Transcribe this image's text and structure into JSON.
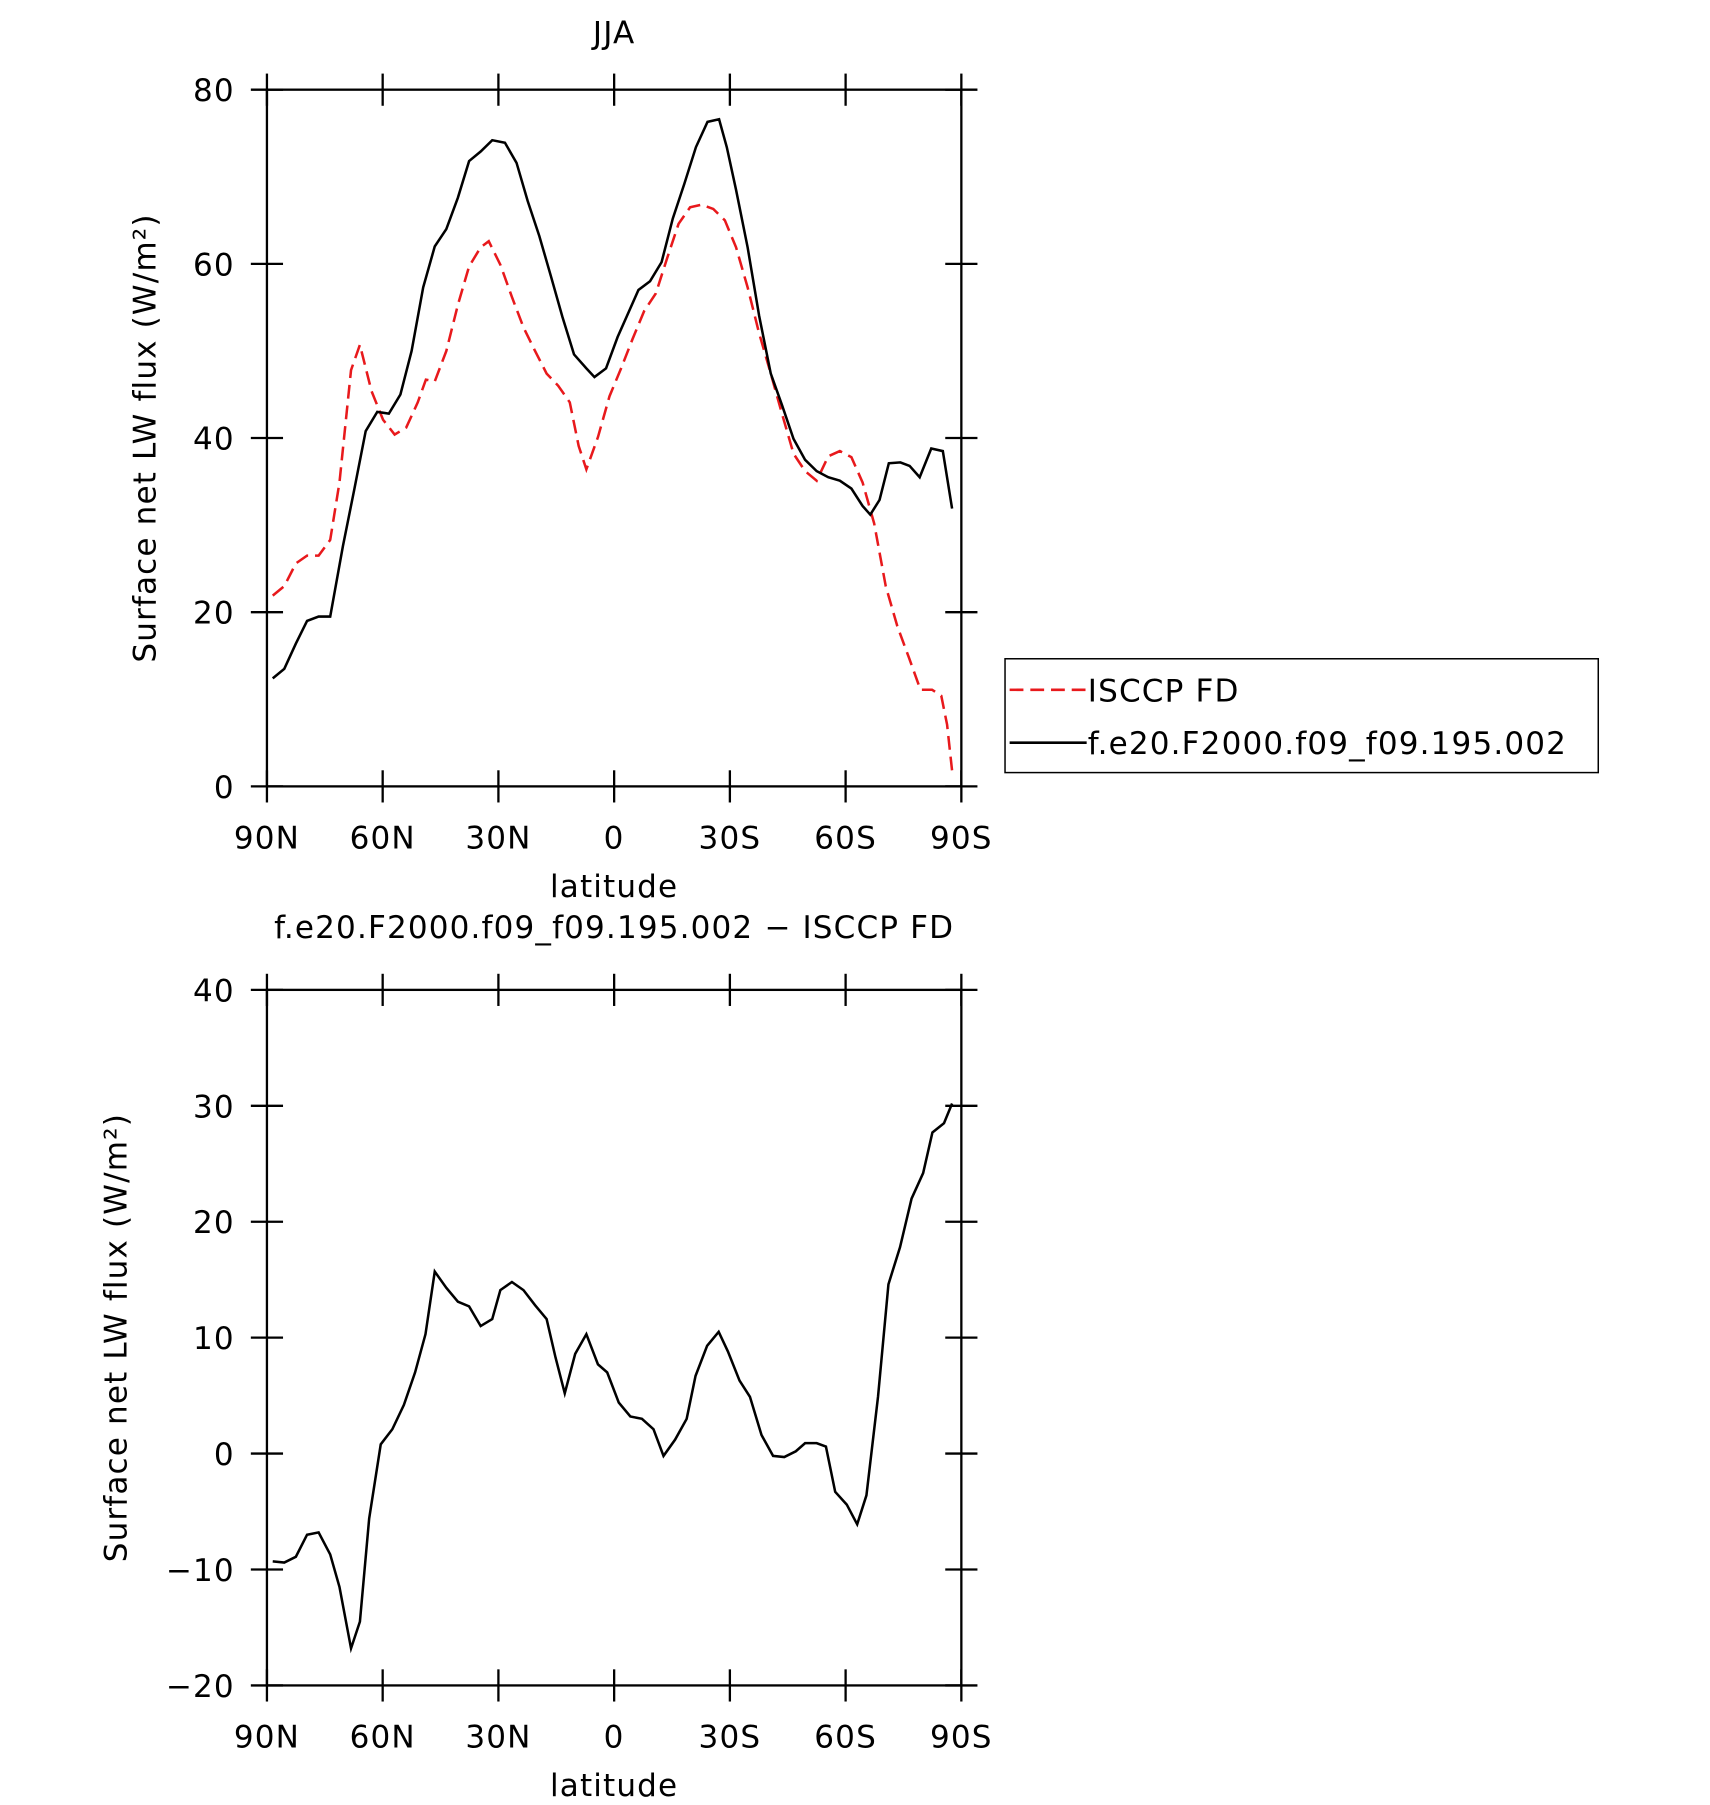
{
  "chart_data": [
    {
      "type": "line",
      "title": "JJA",
      "xlabel": "latitude",
      "ylabel": "Surface net LW flux (W/m²)",
      "xlim": [
        90,
        -90
      ],
      "xticks": [
        {
          "value": 90,
          "label": "90N"
        },
        {
          "value": 60,
          "label": "60N"
        },
        {
          "value": 30,
          "label": "30N"
        },
        0,
        {
          "value": -30,
          "label": "30S"
        },
        {
          "value": -60,
          "label": "60S"
        },
        {
          "value": -90,
          "label": "90S"
        }
      ],
      "ylim": [
        0,
        80
      ],
      "yticks": [
        0,
        20,
        40,
        60,
        80
      ],
      "legend": "right",
      "series": [
        {
          "name": "ISCCP FD",
          "color": "#e8191c",
          "line_style": "dashed",
          "x": [
            88.5,
            85.5,
            82.5,
            79.6,
            76.6,
            73.6,
            71.2,
            68.2,
            65.9,
            62.9,
            59.9,
            56.9,
            53.9,
            50.9,
            48.8,
            46.5,
            43.5,
            40.5,
            37.6,
            34.6,
            32.5,
            29.5,
            26.5,
            23.5,
            20.5,
            17.5,
            14.5,
            11.5,
            9.2,
            7.2,
            4.2,
            1.2,
            -1.8,
            -4.8,
            -7.8,
            -10.8,
            -13.7,
            -16.7,
            -19.7,
            -22.7,
            -25.7,
            -28.7,
            -31.6,
            -34.6,
            -37.6,
            -40.6,
            -43.5,
            -46.5,
            -49.5,
            -52.5,
            -55.5,
            -58.5,
            -61.5,
            -64.4,
            -67.4,
            -70.4,
            -73.4,
            -76.4,
            -79.4,
            -82.4,
            -84.8,
            -86.3,
            -87.6
          ],
          "values": [
            21.9,
            23,
            25.6,
            26.5,
            26.5,
            28.3,
            34.9,
            47.8,
            50.7,
            45.4,
            42.1,
            40.4,
            41.2,
            44.1,
            46.7,
            46.5,
            50,
            55.3,
            59.7,
            61.9,
            62.6,
            59.9,
            56.2,
            52.7,
            50,
            47.4,
            46,
            44.1,
            39.1,
            36.4,
            40.1,
            44.8,
            48,
            51.4,
            54.6,
            56.6,
            60.6,
            64.6,
            66.5,
            66.8,
            66.3,
            65,
            61.9,
            57.3,
            52,
            47.4,
            42.8,
            38.2,
            36.2,
            35.1,
            37.9,
            38.5,
            37.8,
            34.9,
            30.2,
            23,
            18.4,
            14.8,
            11.1,
            11.1,
            10.4,
            7.1,
            1.8
          ]
        },
        {
          "name": "f.e20.F2000.f09_f09.195.002",
          "color": "#000000",
          "line_style": "solid",
          "x": [
            88.5,
            85.5,
            82.5,
            79.6,
            76.6,
            73.6,
            70.3,
            67.4,
            64.4,
            61.4,
            58.4,
            55.4,
            52.5,
            49.5,
            46.5,
            43.5,
            40.5,
            37.6,
            34.6,
            31.6,
            28.3,
            25.3,
            22.4,
            19.4,
            16.4,
            13.4,
            10.4,
            7.2,
            5.1,
            2.1,
            -0.9,
            -3.3,
            -6.3,
            -9.3,
            -12.3,
            -15.2,
            -18.2,
            -21.2,
            -24.2,
            -27.2,
            -29.2,
            -31.6,
            -34.6,
            -37.6,
            -40.6,
            -43.5,
            -46.5,
            -49.5,
            -52.5,
            -55.5,
            -58.5,
            -61.5,
            -64.4,
            -66.4,
            -68.8,
            -71.2,
            -74.2,
            -76.6,
            -79.2,
            -82.2,
            -85.2,
            -87.6
          ],
          "values": [
            12.4,
            13.5,
            16.4,
            19,
            19.5,
            19.5,
            27.6,
            34,
            40.8,
            43,
            42.8,
            45,
            50,
            57.3,
            62,
            64,
            67.6,
            71.8,
            72.9,
            74.2,
            73.9,
            71.6,
            67.2,
            63.2,
            58.6,
            53.9,
            49.6,
            48,
            47,
            48,
            51.6,
            54,
            57,
            58,
            60.2,
            65.2,
            69.2,
            73.4,
            76.3,
            76.6,
            73.4,
            68.5,
            61.9,
            54,
            47.4,
            43.8,
            39.9,
            37.5,
            36.2,
            35.5,
            35.1,
            34.2,
            32.2,
            31.2,
            32.9,
            37.1,
            37.2,
            36.8,
            35.5,
            38.8,
            38.5,
            31.9
          ]
        }
      ]
    },
    {
      "type": "line",
      "title": "f.e20.F2000.f09_f09.195.002 − ISCCP FD",
      "xlabel": "latitude",
      "ylabel": "Surface net LW flux (W/m²)",
      "xlim": [
        90,
        -90
      ],
      "xticks": [
        {
          "value": 90,
          "label": "90N"
        },
        {
          "value": 60,
          "label": "60N"
        },
        {
          "value": 30,
          "label": "30N"
        },
        0,
        {
          "value": -30,
          "label": "30S"
        },
        {
          "value": -60,
          "label": "60S"
        },
        {
          "value": -90,
          "label": "90S"
        }
      ],
      "ylim": [
        -20,
        40
      ],
      "yticks": [
        {
          "value": -20,
          "label": "−20"
        },
        {
          "value": -10,
          "label": "−10"
        },
        0,
        10,
        20,
        30,
        40
      ],
      "color": "#000000",
      "x": [
        88.5,
        85.5,
        82.5,
        79.6,
        76.6,
        73.6,
        71.2,
        68.2,
        65.9,
        63.5,
        60.5,
        57.5,
        54.5,
        51.6,
        48.9,
        46.5,
        43.5,
        40.5,
        37.6,
        34.6,
        31.6,
        29.5,
        26.5,
        23.5,
        20.5,
        17.5,
        15.2,
        12.8,
        10.1,
        7.2,
        4.2,
        1.8,
        -1.2,
        -4.2,
        -7.2,
        -10.2,
        -12.8,
        -15.8,
        -18.8,
        -21.1,
        -24.1,
        -27.1,
        -29.5,
        -32.5,
        -35.2,
        -38.2,
        -41.2,
        -44.1,
        -47.1,
        -49.5,
        -52.5,
        -54.9,
        -57.3,
        -60.3,
        -63,
        -65.4,
        -68.4,
        -71.1,
        -74.1,
        -77.1,
        -80.1,
        -82.5,
        -85.5,
        -87.6
      ],
      "values": [
        -9.3,
        -9.4,
        -8.9,
        -7,
        -6.8,
        -8.7,
        -11.5,
        -16.8,
        -14.5,
        -5.6,
        0.8,
        2.1,
        4.2,
        7,
        10.3,
        15.7,
        14.3,
        13.1,
        12.7,
        11,
        11.6,
        14.1,
        14.8,
        14.1,
        12.8,
        11.6,
        8.3,
        5.2,
        8.6,
        10.3,
        7.7,
        7,
        4.4,
        3.2,
        3,
        2.1,
        -0.2,
        1.2,
        3,
        6.7,
        9.3,
        10.5,
        8.8,
        6.3,
        4.9,
        1.6,
        -0.2,
        -0.3,
        0.2,
        0.9,
        0.9,
        0.6,
        -3.3,
        -4.4,
        -6.1,
        -3.6,
        4.9,
        14.6,
        17.8,
        22,
        24.2,
        27.7,
        28.5,
        30.2
      ]
    }
  ]
}
